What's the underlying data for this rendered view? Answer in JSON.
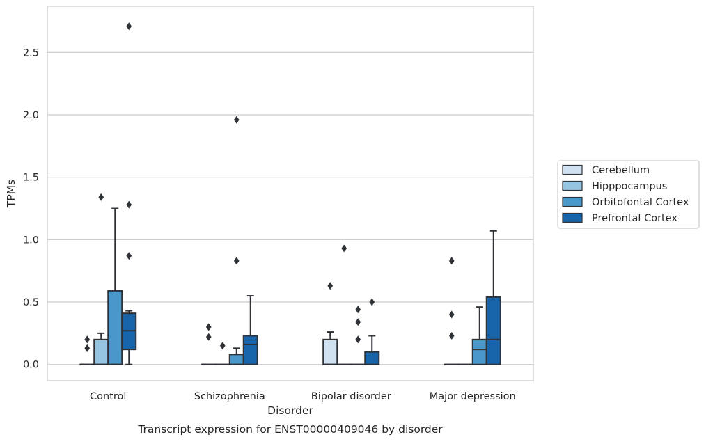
{
  "chart_data": {
    "type": "boxplot",
    "title": "",
    "caption": "Transcript expression for ENST00000409046 by disorder",
    "xlabel": "Disorder",
    "ylabel": "TPMs",
    "ylim": [
      -0.13,
      2.87
    ],
    "yticks": [
      0.0,
      0.5,
      1.0,
      1.5,
      2.0,
      2.5
    ],
    "ytick_labels": [
      "0.0",
      "0.5",
      "1.0",
      "1.5",
      "2.0",
      "2.5"
    ],
    "grid": "horizontal",
    "legend_position": "right",
    "categories": [
      "Control",
      "Schizophrenia",
      "Bipolar disorder",
      "Major depression"
    ],
    "series": [
      {
        "name": "Cerebellum",
        "color": "#d0e1f2",
        "boxes": [
          {
            "min": 0,
            "q1": 0,
            "median": 0,
            "q3": 0,
            "max": 0,
            "outliers": [
              0.2,
              0.13
            ]
          },
          {
            "min": 0,
            "q1": 0,
            "median": 0,
            "q3": 0,
            "max": 0,
            "outliers": [
              0.3,
              0.22
            ]
          },
          {
            "min": 0,
            "q1": 0,
            "median": 0,
            "q3": 0.2,
            "max": 0.26,
            "outliers": [
              0.63
            ]
          },
          {
            "min": 0,
            "q1": 0,
            "median": 0,
            "q3": 0,
            "max": 0,
            "outliers": [
              0.83,
              0.4,
              0.23
            ]
          }
        ]
      },
      {
        "name": "Hipppocampus",
        "color": "#94c4df",
        "boxes": [
          {
            "min": 0,
            "q1": 0,
            "median": 0,
            "q3": 0.2,
            "max": 0.25,
            "outliers": [
              1.34
            ]
          },
          {
            "min": 0,
            "q1": 0,
            "median": 0,
            "q3": 0,
            "max": 0,
            "outliers": [
              0.15
            ]
          },
          {
            "min": 0,
            "q1": 0,
            "median": 0,
            "q3": 0,
            "max": 0,
            "outliers": [
              0.93
            ]
          },
          {
            "min": 0,
            "q1": 0,
            "median": 0,
            "q3": 0,
            "max": 0,
            "outliers": []
          }
        ]
      },
      {
        "name": "Orbitofontal Cortex",
        "color": "#4a98c9",
        "boxes": [
          {
            "min": 0,
            "q1": 0,
            "median": 0,
            "q3": 0.59,
            "max": 1.25,
            "outliers": []
          },
          {
            "min": 0,
            "q1": 0,
            "median": 0,
            "q3": 0.08,
            "max": 0.13,
            "outliers": [
              0.83,
              1.96
            ]
          },
          {
            "min": 0,
            "q1": 0,
            "median": 0,
            "q3": 0,
            "max": 0,
            "outliers": [
              0.44,
              0.34,
              0.2
            ]
          },
          {
            "min": 0,
            "q1": 0,
            "median": 0.12,
            "q3": 0.2,
            "max": 0.46,
            "outliers": []
          }
        ]
      },
      {
        "name": "Prefrontal Cortex",
        "color": "#1764ab",
        "boxes": [
          {
            "min": 0,
            "q1": 0.12,
            "median": 0.27,
            "q3": 0.41,
            "max": 0.43,
            "outliers": [
              2.71,
              1.28,
              0.87
            ]
          },
          {
            "min": 0,
            "q1": 0,
            "median": 0.16,
            "q3": 0.23,
            "max": 0.55,
            "outliers": []
          },
          {
            "min": 0,
            "q1": 0,
            "median": 0,
            "q3": 0.1,
            "max": 0.23,
            "outliers": [
              0.5
            ]
          },
          {
            "min": 0,
            "q1": 0,
            "median": 0.2,
            "q3": 0.54,
            "max": 1.07,
            "outliers": []
          }
        ]
      }
    ]
  }
}
